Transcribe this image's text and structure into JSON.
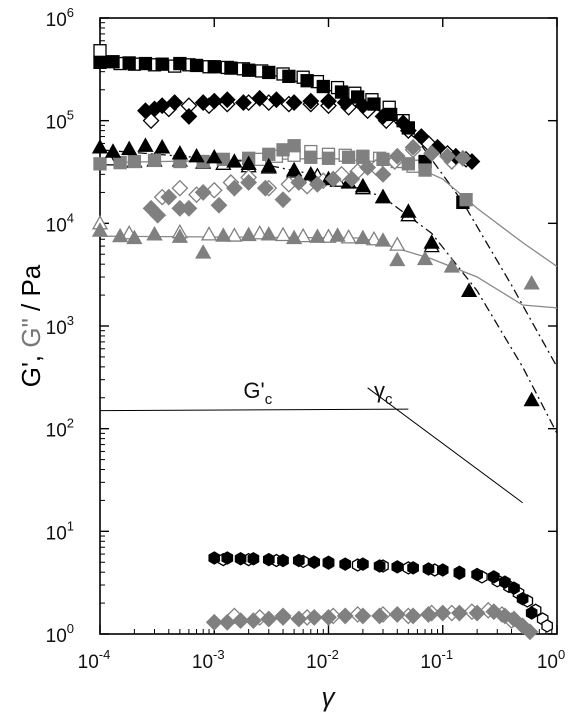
{
  "chart_data": {
    "type": "scatter",
    "title": "",
    "xlabel": "γ",
    "ylabel_parts": [
      {
        "text": "G', ",
        "color": "#000000"
      },
      {
        "text": "G\"",
        "color": "#777777"
      },
      {
        "text": " / Pa",
        "color": "#000000"
      }
    ],
    "x_scale": "log",
    "y_scale": "log",
    "xlim": [
      0.0001,
      1
    ],
    "ylim": [
      1,
      1000000
    ],
    "x_tick_labels": [
      {
        "value": 0.0001,
        "base": "10",
        "exp": "-4"
      },
      {
        "value": 0.001,
        "base": "10",
        "exp": "-3"
      },
      {
        "value": 0.01,
        "base": "10",
        "exp": "-2"
      },
      {
        "value": 0.1,
        "base": "10",
        "exp": "-1"
      },
      {
        "value": 1,
        "base": "10",
        "exp": "0"
      }
    ],
    "y_tick_labels": [
      {
        "value": 1,
        "base": "10",
        "exp": "0"
      },
      {
        "value": 10,
        "base": "10",
        "exp": "1"
      },
      {
        "value": 100,
        "base": "10",
        "exp": "2"
      },
      {
        "value": 1000,
        "base": "10",
        "exp": "3"
      },
      {
        "value": 10000,
        "base": "10",
        "exp": "4"
      },
      {
        "value": 100000,
        "base": "10",
        "exp": "5"
      },
      {
        "value": 1000000,
        "base": "10",
        "exp": "6"
      }
    ],
    "annotations": [
      {
        "base": "G'",
        "sub": "c",
        "x": 0.0018,
        "y": 200
      },
      {
        "base": "γ",
        "sub": "c",
        "x": 0.025,
        "y": 200
      }
    ],
    "guide_lines": [
      {
        "x": [
          0.0001,
          0.05
        ],
        "y": [
          150,
          155
        ]
      },
      {
        "x": [
          0.022,
          0.5
        ],
        "y": [
          250,
          19
        ]
      }
    ],
    "series": [
      {
        "marker": "square",
        "filled": true,
        "color": "#000000",
        "x": [
          0.0001,
          0.00013,
          0.00018,
          0.00025,
          0.00035,
          0.0005,
          0.0007,
          0.001,
          0.0014,
          0.002,
          0.003,
          0.0045,
          0.0065,
          0.009,
          0.013,
          0.018,
          0.025,
          0.035,
          0.05,
          0.07,
          0.15
        ],
        "y": [
          370000,
          375000,
          365000,
          360000,
          355000,
          360000,
          345000,
          335000,
          325000,
          310000,
          295000,
          270000,
          245000,
          215000,
          190000,
          170000,
          145000,
          115000,
          85000,
          40000,
          16000
        ],
        "fit": {
          "x": [
            0.0001,
            0.002,
            0.01,
            0.03,
            0.06,
            0.15,
            0.4,
            1
          ],
          "y": [
            370000,
            320000,
            200000,
            120000,
            65000,
            16000,
            2500,
            400
          ]
        }
      },
      {
        "marker": "square",
        "filled": false,
        "color": "#000000",
        "x": [
          0.0001,
          0.00015,
          0.0002,
          0.0003,
          0.00045,
          0.0006,
          0.0009,
          0.0013,
          0.0018,
          0.0026,
          0.004,
          0.006,
          0.008,
          0.012,
          0.017,
          0.024,
          0.034,
          0.045
        ],
        "y": [
          480000,
          360000,
          355000,
          350000,
          340000,
          350000,
          335000,
          330000,
          320000,
          305000,
          285000,
          265000,
          240000,
          210000,
          185000,
          160000,
          135000,
          100000
        ]
      },
      {
        "marker": "square",
        "filled": true,
        "color": "#808080",
        "x": [
          0.0001,
          0.00015,
          0.0002,
          0.0003,
          0.0005,
          0.0008,
          0.0012,
          0.002,
          0.003,
          0.004,
          0.005,
          0.007,
          0.01,
          0.015,
          0.02,
          0.03,
          0.05,
          0.07,
          0.16
        ],
        "y": [
          38000,
          39000,
          40000,
          41000,
          40000,
          40000,
          42000,
          43000,
          47000,
          52000,
          57000,
          44000,
          43000,
          44000,
          44000,
          42000,
          38000,
          33000,
          17000
        ],
        "fit": {
          "x": [
            0.0001,
            0.01,
            0.05,
            0.1,
            0.2,
            0.5,
            1
          ],
          "y": [
            39000,
            43000,
            38000,
            27000,
            14000,
            6500,
            3800
          ]
        }
      },
      {
        "marker": "square",
        "filled": false,
        "color": "#808080",
        "x": [
          0.0025,
          0.0035,
          0.005,
          0.007,
          0.01,
          0.014,
          0.02,
          0.028,
          0.04,
          0.055
        ],
        "y": [
          42000,
          45000,
          46000,
          50000,
          47000,
          46000,
          45000,
          43000,
          40000,
          36000
        ]
      },
      {
        "marker": "triangle",
        "filled": true,
        "color": "#000000",
        "x": [
          0.0001,
          0.00013,
          0.00018,
          0.00025,
          0.00035,
          0.0005,
          0.0007,
          0.001,
          0.0015,
          0.002,
          0.003,
          0.005,
          0.007,
          0.01,
          0.015,
          0.02,
          0.03,
          0.05,
          0.08,
          0.17,
          0.6
        ],
        "y": [
          55000,
          50000,
          53000,
          57000,
          55000,
          48000,
          45000,
          44000,
          40000,
          38000,
          36000,
          33000,
          30000,
          27000,
          25000,
          23000,
          18000,
          13000,
          6500,
          2200,
          190
        ],
        "fit": {
          "x": [
            0.0001,
            0.002,
            0.01,
            0.03,
            0.08,
            0.2,
            0.5,
            1
          ],
          "y": [
            52000,
            40000,
            28000,
            18000,
            8000,
            2200,
            400,
            90
          ]
        }
      },
      {
        "marker": "triangle",
        "filled": false,
        "color": "#000000",
        "x": [
          0.00012,
          0.0002,
          0.0003,
          0.0005,
          0.0008,
          0.0012,
          0.002,
          0.003,
          0.005,
          0.008,
          0.012,
          0.02,
          0.03,
          0.05,
          0.08
        ],
        "y": [
          42000,
          40000,
          41000,
          41000,
          39000,
          38000,
          36000,
          35000,
          32000,
          29000,
          26000,
          22000,
          18000,
          12000,
          6000
        ]
      },
      {
        "marker": "triangle",
        "filled": true,
        "color": "#808080",
        "x": [
          0.0001,
          0.00015,
          0.0002,
          0.0003,
          0.0005,
          0.0008,
          0.0012,
          0.002,
          0.003,
          0.005,
          0.008,
          0.012,
          0.02,
          0.03,
          0.04,
          0.07,
          0.12,
          0.6
        ],
        "y": [
          8500,
          7500,
          7200,
          7800,
          7400,
          5200,
          7600,
          7700,
          7800,
          7200,
          7400,
          7600,
          7200,
          6800,
          4400,
          4500,
          3800,
          2600
        ],
        "fit": {
          "x": [
            0.0001,
            0.02,
            0.08,
            0.2,
            0.5,
            1
          ],
          "y": [
            7500,
            7200,
            4500,
            3000,
            1600,
            1500
          ]
        }
      },
      {
        "marker": "triangle",
        "filled": false,
        "color": "#808080",
        "x": [
          0.0001,
          0.00018,
          0.0003,
          0.0005,
          0.0009,
          0.0015,
          0.0025,
          0.004,
          0.006,
          0.01,
          0.015,
          0.025,
          0.04
        ],
        "y": [
          10000,
          8000,
          7800,
          8200,
          7800,
          7600,
          8000,
          7700,
          7500,
          7400,
          7300,
          7000,
          6200
        ]
      },
      {
        "marker": "diamond",
        "filled": true,
        "color": "#000000",
        "x": [
          0.00025,
          0.0003,
          0.00035,
          0.00045,
          0.0006,
          0.0008,
          0.001,
          0.0013,
          0.0018,
          0.0025,
          0.0035,
          0.005,
          0.007,
          0.01,
          0.014,
          0.02,
          0.03,
          0.045,
          0.065,
          0.09,
          0.13,
          0.18
        ],
        "y": [
          125000,
          130000,
          140000,
          150000,
          110000,
          150000,
          155000,
          160000,
          150000,
          165000,
          160000,
          150000,
          155000,
          155000,
          150000,
          140000,
          110000,
          95000,
          70000,
          55000,
          45000,
          40000
        ]
      },
      {
        "marker": "diamond",
        "filled": false,
        "color": "#000000",
        "x": [
          0.00028,
          0.0004,
          0.0006,
          0.0009,
          0.0013,
          0.002,
          0.003,
          0.0045,
          0.007,
          0.01,
          0.015,
          0.022,
          0.032,
          0.05,
          0.075,
          0.11,
          0.16
        ],
        "y": [
          100000,
          130000,
          140000,
          140000,
          145000,
          150000,
          150000,
          145000,
          145000,
          140000,
          135000,
          125000,
          100000,
          80000,
          60000,
          48000,
          42000
        ]
      },
      {
        "marker": "diamond",
        "filled": true,
        "color": "#808080",
        "x": [
          0.00028,
          0.00032,
          0.0004,
          0.0005,
          0.0006,
          0.0008,
          0.0011,
          0.0015,
          0.002,
          0.0028,
          0.004,
          0.0055,
          0.008,
          0.011,
          0.016,
          0.022,
          0.03,
          0.04,
          0.055,
          0.08,
          0.11,
          0.15
        ],
        "y": [
          14000,
          12000,
          18000,
          14000,
          14000,
          20000,
          15000,
          22000,
          25000,
          22000,
          17000,
          25000,
          24000,
          27000,
          27000,
          35000,
          30000,
          45000,
          55000,
          48000,
          45000,
          43000
        ]
      },
      {
        "marker": "diamond",
        "filled": false,
        "color": "#808080",
        "x": [
          0.00035,
          0.0005,
          0.0007,
          0.001,
          0.0014,
          0.002,
          0.003,
          0.0045,
          0.0065,
          0.009,
          0.013,
          0.018,
          0.026,
          0.038,
          0.055,
          0.08,
          0.12
        ],
        "y": [
          18000,
          22000,
          19000,
          21000,
          25000,
          28000,
          22000,
          24000,
          23000,
          26000,
          30000,
          32000,
          35000,
          40000,
          52000,
          48000,
          40000
        ]
      },
      {
        "marker": "hexagon",
        "filled": true,
        "color": "#000000",
        "x": [
          0.001,
          0.0013,
          0.0017,
          0.0022,
          0.003,
          0.004,
          0.0055,
          0.0075,
          0.01,
          0.014,
          0.02,
          0.028,
          0.04,
          0.055,
          0.075,
          0.1,
          0.14,
          0.2,
          0.28,
          0.35,
          0.42,
          0.5,
          0.6
        ],
        "y": [
          5.5,
          5.5,
          5.4,
          5.4,
          5.3,
          5.2,
          5.2,
          5.0,
          5.0,
          4.8,
          4.8,
          4.6,
          4.5,
          4.4,
          4.3,
          4.2,
          4.0,
          3.8,
          3.6,
          3.2,
          2.8,
          2.2,
          1.6
        ]
      },
      {
        "marker": "hexagon",
        "filled": false,
        "color": "#000000",
        "x": [
          0.0012,
          0.002,
          0.0035,
          0.006,
          0.01,
          0.018,
          0.03,
          0.05,
          0.085,
          0.14,
          0.22,
          0.3,
          0.38,
          0.46,
          0.55,
          0.65,
          0.75,
          0.82
        ],
        "y": [
          5.3,
          5.3,
          5.2,
          5.1,
          4.9,
          4.7,
          4.6,
          4.4,
          4.2,
          3.9,
          3.6,
          3.3,
          2.9,
          2.5,
          2.1,
          1.7,
          1.4,
          1.2
        ]
      },
      {
        "marker": "diamond",
        "filled": true,
        "color": "#808080",
        "x": [
          0.001,
          0.0013,
          0.0017,
          0.0022,
          0.003,
          0.004,
          0.0055,
          0.0075,
          0.01,
          0.014,
          0.02,
          0.028,
          0.04,
          0.055,
          0.075,
          0.1,
          0.14,
          0.2,
          0.28,
          0.35,
          0.42,
          0.5,
          0.58
        ],
        "y": [
          1.3,
          1.3,
          1.35,
          1.35,
          1.4,
          1.45,
          1.4,
          1.45,
          1.45,
          1.5,
          1.5,
          1.5,
          1.55,
          1.5,
          1.55,
          1.6,
          1.6,
          1.6,
          1.65,
          1.5,
          1.4,
          1.2,
          1.05
        ]
      },
      {
        "marker": "diamond",
        "filled": false,
        "color": "#808080",
        "x": [
          0.0015,
          0.0025,
          0.004,
          0.0065,
          0.011,
          0.018,
          0.03,
          0.05,
          0.08,
          0.12,
          0.18,
          0.25,
          0.33,
          0.4
        ],
        "y": [
          1.5,
          1.45,
          1.5,
          1.45,
          1.5,
          1.55,
          1.55,
          1.5,
          1.6,
          1.6,
          1.65,
          1.7,
          1.55,
          1.35
        ]
      }
    ]
  }
}
